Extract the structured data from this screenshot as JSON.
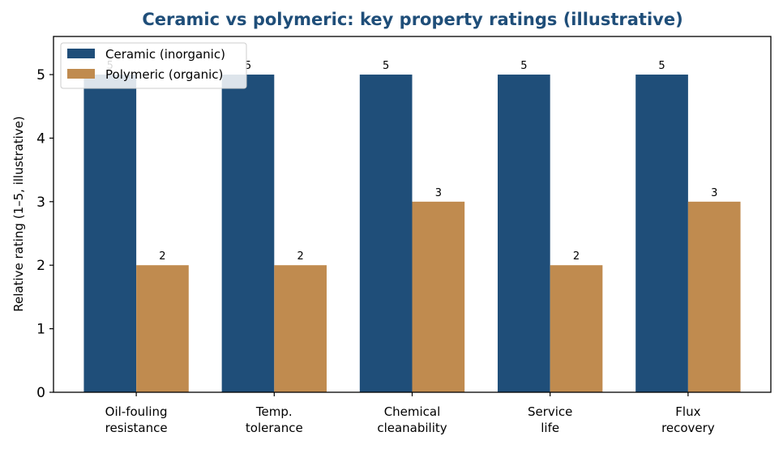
{
  "chart_data": {
    "type": "bar",
    "title": "Ceramic vs polymeric: key property ratings (illustrative)",
    "ylabel": "Relative rating (1–5, illustrative)",
    "xlabel": "",
    "categories": [
      [
        "Oil-fouling",
        "resistance"
      ],
      [
        "Temp.",
        "tolerance"
      ],
      [
        "Chemical",
        "cleanability"
      ],
      [
        "Service",
        "life"
      ],
      [
        "Flux",
        "recovery"
      ]
    ],
    "series": [
      {
        "name": "Ceramic (inorganic)",
        "values": [
          5,
          5,
          5,
          5,
          5
        ],
        "color": "#1f4e79"
      },
      {
        "name": "Polymeric (organic)",
        "values": [
          2,
          2,
          3,
          2,
          3
        ],
        "color": "#c08b4f"
      }
    ],
    "ylim": [
      0,
      5.6
    ],
    "yticks": [
      "0",
      "1",
      "2",
      "3",
      "4",
      "5"
    ],
    "legend_position": "top-left",
    "grid": false,
    "title_color": "#1f4e79"
  }
}
